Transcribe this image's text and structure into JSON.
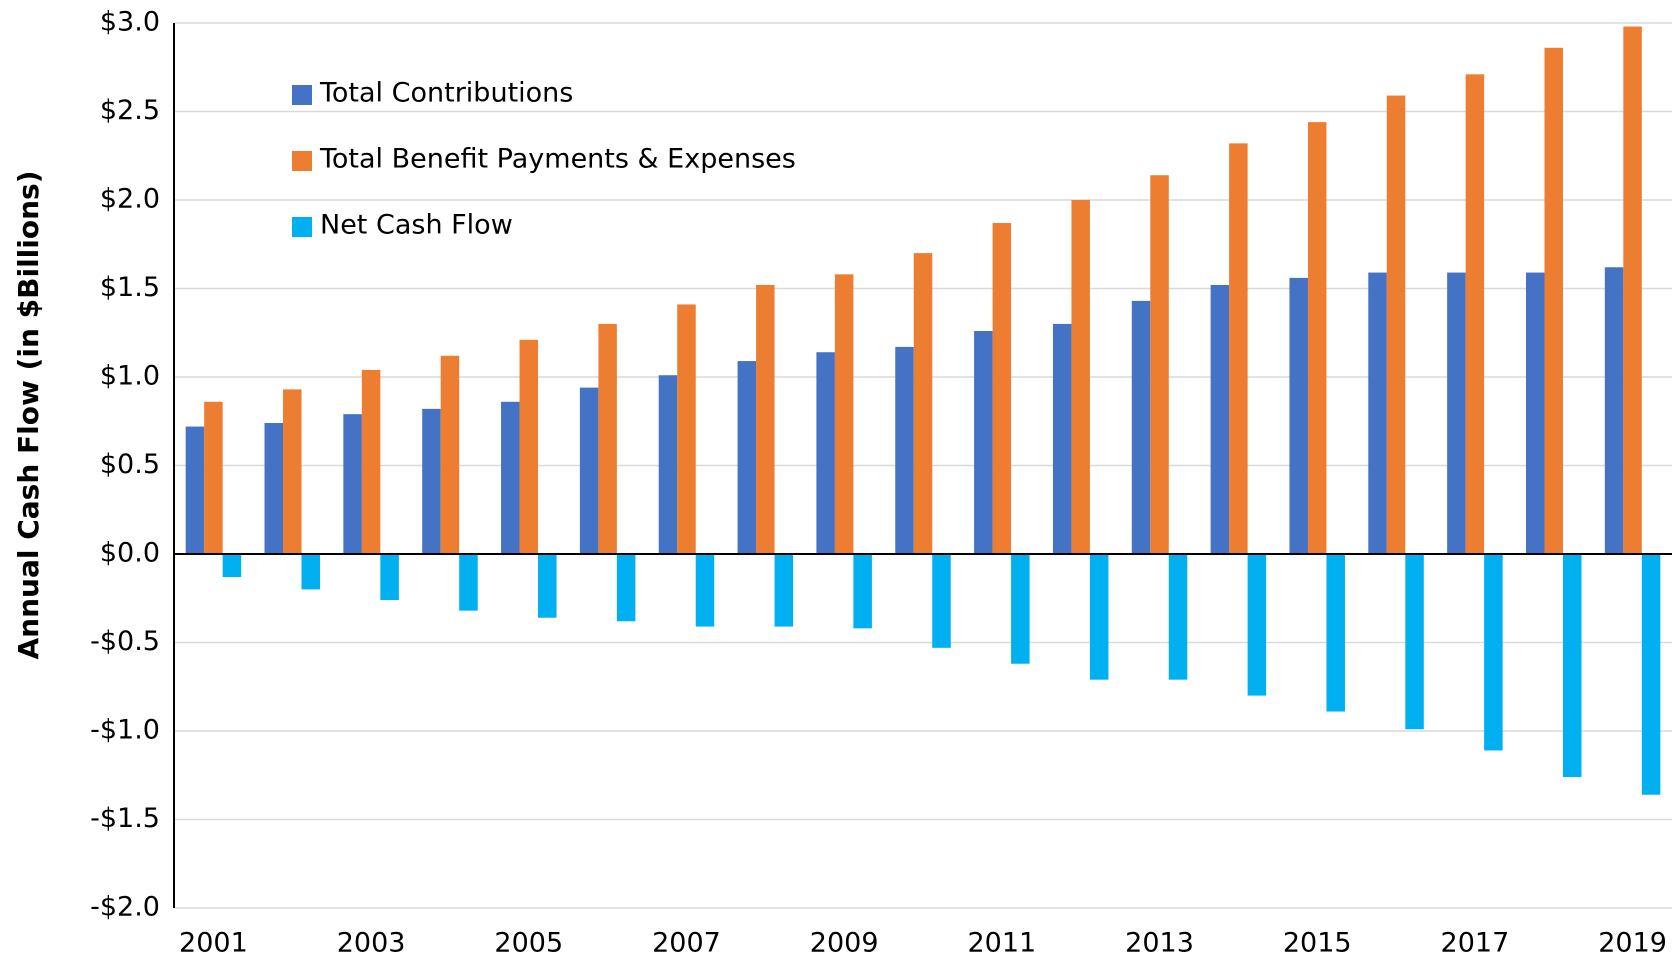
{
  "chart_data": {
    "type": "bar",
    "y_label": "Annual Cash Flow (in $Billions)",
    "categories": [
      "2001",
      null,
      "2003",
      null,
      "2005",
      null,
      "2007",
      null,
      "2009",
      null,
      "2011",
      null,
      "2013",
      null,
      "2015",
      null,
      "2017",
      null,
      "2019"
    ],
    "series": [
      {
        "name": "Total Contributions",
        "color": "#4472c4",
        "values": [
          0.72,
          0.74,
          0.79,
          0.82,
          0.86,
          0.94,
          1.01,
          1.09,
          1.14,
          1.17,
          1.26,
          1.3,
          1.43,
          1.52,
          1.56,
          1.59,
          1.59,
          1.59,
          1.62
        ]
      },
      {
        "name": "Total Benefit Payments & Expenses",
        "color": "#ed7d31",
        "values": [
          0.86,
          0.93,
          1.04,
          1.12,
          1.21,
          1.3,
          1.41,
          1.52,
          1.58,
          1.7,
          1.87,
          2.0,
          2.14,
          2.32,
          2.44,
          2.59,
          2.71,
          2.86,
          2.98
        ]
      },
      {
        "name": "Net Cash Flow",
        "color": "#00b0f0",
        "values": [
          -0.13,
          -0.2,
          -0.26,
          -0.32,
          -0.36,
          -0.38,
          -0.41,
          -0.41,
          -0.42,
          -0.53,
          -0.62,
          -0.71,
          -0.71,
          -0.8,
          -0.89,
          -0.99,
          -1.11,
          -1.26,
          -1.36
        ]
      }
    ],
    "ylim": [
      -2.0,
      3.0
    ],
    "yticks": [
      {
        "value": 3.0,
        "label": "$3.0"
      },
      {
        "value": 2.5,
        "label": "$2.5"
      },
      {
        "value": 2.0,
        "label": "$2.0"
      },
      {
        "value": 1.5,
        "label": "$1.5"
      },
      {
        "value": 1.0,
        "label": "$1.0"
      },
      {
        "value": 0.5,
        "label": "$0.5"
      },
      {
        "value": 0.0,
        "label": "$0.0"
      },
      {
        "value": -0.5,
        "label": "-$0.5"
      },
      {
        "value": -1.0,
        "label": "-$1.0"
      },
      {
        "value": -1.5,
        "label": "-$1.5"
      },
      {
        "value": -2.0,
        "label": "-$2.0"
      }
    ],
    "grid": true,
    "legend": "upper left"
  }
}
